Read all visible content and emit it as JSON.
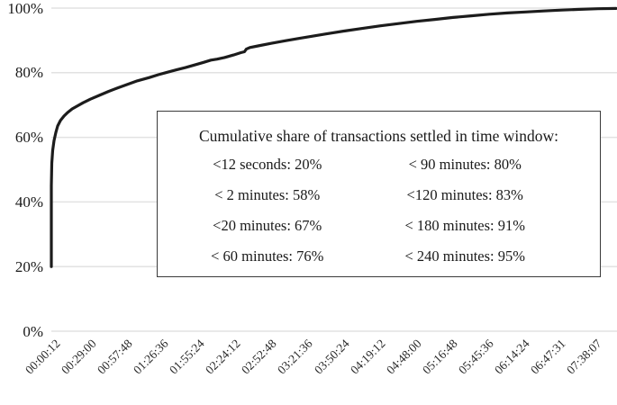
{
  "chart_data": {
    "type": "line",
    "title": "",
    "xlabel": "",
    "ylabel": "",
    "ylim": [
      0,
      100
    ],
    "grid": "horizontal",
    "legend": "none",
    "y_ticks": [
      {
        "value": 100,
        "label": "100%"
      },
      {
        "value": 80,
        "label": "80%"
      },
      {
        "value": 60,
        "label": "60%"
      },
      {
        "value": 40,
        "label": "40%"
      },
      {
        "value": 20,
        "label": "20%"
      },
      {
        "value": 0,
        "label": "0%"
      }
    ],
    "x_tick_labels": [
      "00:00:12",
      "00:29:00",
      "00:57:48",
      "01:26:36",
      "01:55:24",
      "02:24:12",
      "02:52:48",
      "03:21:36",
      "03:50:24",
      "04:19:12",
      "04:48:00",
      "05:16:48",
      "05:45:36",
      "06:14:24",
      "06:47:31",
      "07:38:07"
    ],
    "cdf_summary": [
      {
        "window": "<12 seconds",
        "share_pct": 20
      },
      {
        "window": "<2 minutes",
        "share_pct": 58
      },
      {
        "window": "<20 minutes",
        "share_pct": 67
      },
      {
        "window": "<60 minutes",
        "share_pct": 76
      },
      {
        "window": "<90 minutes",
        "share_pct": 80
      },
      {
        "window": "<120 minutes",
        "share_pct": 83
      },
      {
        "window": "<180 minutes",
        "share_pct": 91
      },
      {
        "window": "<240 minutes",
        "share_pct": 95
      }
    ],
    "curve_points": [
      [
        0,
        20
      ],
      [
        0,
        45
      ],
      [
        0.0008,
        52
      ],
      [
        0.0024,
        56
      ],
      [
        0.0048,
        59
      ],
      [
        0.008,
        61.5
      ],
      [
        0.0112,
        63.5
      ],
      [
        0.0161,
        65.2
      ],
      [
        0.0225,
        66.6
      ],
      [
        0.0289,
        67.7
      ],
      [
        0.0369,
        68.8
      ],
      [
        0.0449,
        69.6
      ],
      [
        0.0562,
        70.7
      ],
      [
        0.069,
        71.8
      ],
      [
        0.0851,
        73
      ],
      [
        0.1011,
        74.2
      ],
      [
        0.1172,
        75.3
      ],
      [
        0.1332,
        76.3
      ],
      [
        0.1525,
        77.5
      ],
      [
        0.1733,
        78.5
      ],
      [
        0.1894,
        79.4
      ],
      [
        0.2022,
        80
      ],
      [
        0.2215,
        80.9
      ],
      [
        0.2375,
        81.6
      ],
      [
        0.2536,
        82.4
      ],
      [
        0.2696,
        83.2
      ],
      [
        0.2825,
        83.9
      ],
      [
        0.2937,
        84.2
      ],
      [
        0.3066,
        84.7
      ],
      [
        0.3226,
        85.5
      ],
      [
        0.3355,
        86.2
      ],
      [
        0.3419,
        86.5
      ],
      [
        0.3451,
        87.3
      ],
      [
        0.3515,
        87.8
      ],
      [
        0.366,
        88.3
      ],
      [
        0.39,
        89.1
      ],
      [
        0.4141,
        89.9
      ],
      [
        0.4382,
        90.6
      ],
      [
        0.4623,
        91.3
      ],
      [
        0.4863,
        92
      ],
      [
        0.5184,
        92.9
      ],
      [
        0.5506,
        93.7
      ],
      [
        0.5827,
        94.5
      ],
      [
        0.6148,
        95.2
      ],
      [
        0.6469,
        95.9
      ],
      [
        0.679,
        96.5
      ],
      [
        0.7111,
        97.1
      ],
      [
        0.7432,
        97.6
      ],
      [
        0.7753,
        98.1
      ],
      [
        0.8074,
        98.5
      ],
      [
        0.8395,
        98.8
      ],
      [
        0.8716,
        99.1
      ],
      [
        0.9037,
        99.4
      ],
      [
        0.9358,
        99.6
      ],
      [
        0.9679,
        99.8
      ],
      [
        1,
        99.9
      ]
    ]
  },
  "annotation_box": {
    "title": "Cumulative share of transactions settled in time window:",
    "entries_left": [
      "<12 seconds: 20%",
      "< 2 minutes: 58%",
      "<20 minutes: 67%",
      "< 60 minutes: 76%"
    ],
    "entries_right": [
      "< 90 minutes: 80%",
      "<120 minutes: 83%",
      "< 180 minutes: 91%",
      "< 240 minutes: 95%"
    ]
  },
  "colors": {
    "line": "#1c1c1c",
    "grid": "#e2e2e2",
    "text": "#1a1a1a",
    "box_border": "#3a3a3a",
    "background": "#ffffff"
  }
}
